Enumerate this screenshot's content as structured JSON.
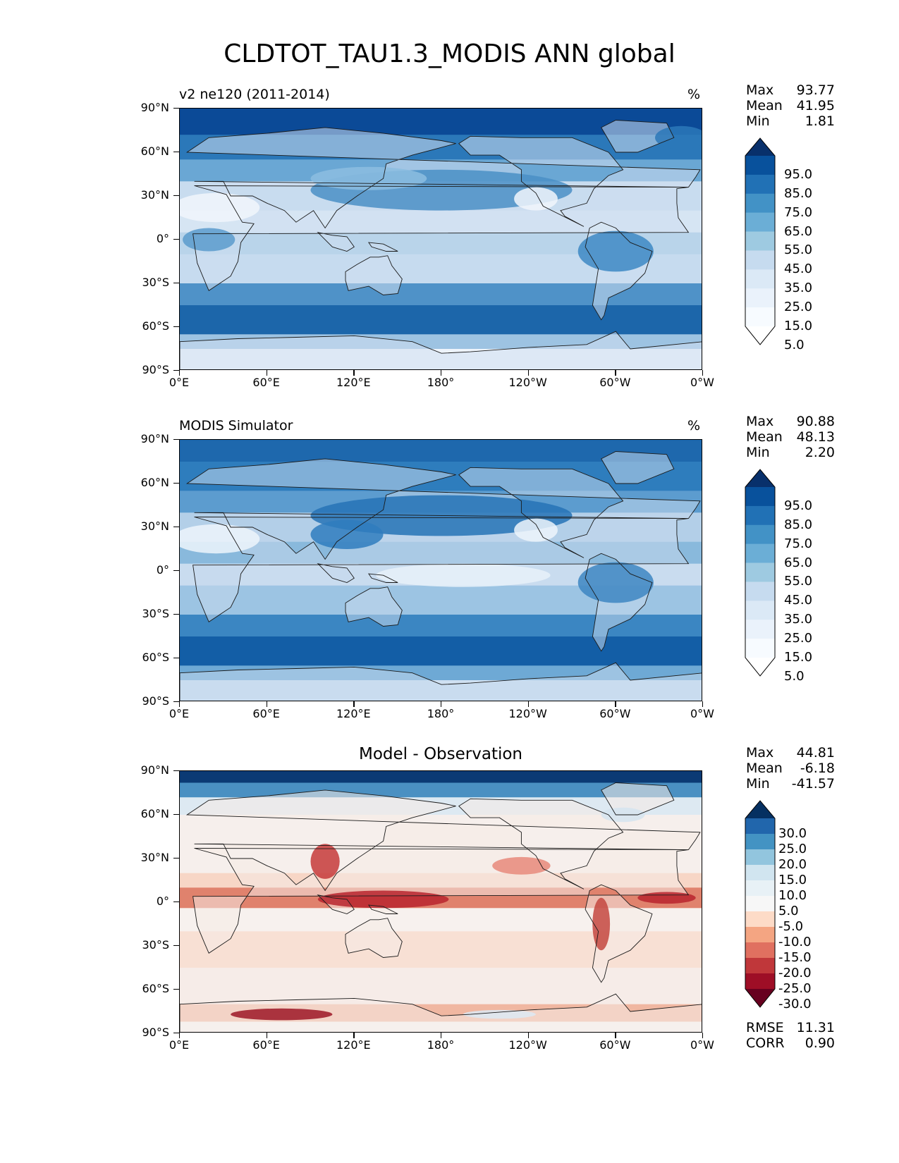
{
  "title": "CLDTOT_TAU1.3_MODIS ANN global",
  "lat_ticks": [
    "90°N",
    "60°N",
    "30°N",
    "0°",
    "30°S",
    "60°S",
    "90°S"
  ],
  "lon_ticks": [
    "0°E",
    "60°E",
    "120°E",
    "180°",
    "120°W",
    "60°W",
    "0°W"
  ],
  "panels": [
    {
      "name": "model",
      "title_left": "v2 ne120 (2011-2014)",
      "title_right": "%",
      "stats": [
        {
          "label": "Max",
          "value": "93.77"
        },
        {
          "label": "Mean",
          "value": "41.95"
        },
        {
          "label": "Min",
          "value": "1.81"
        }
      ],
      "colorbar_labels": [
        "95.0",
        "85.0",
        "75.0",
        "65.0",
        "55.0",
        "45.0",
        "35.0",
        "25.0",
        "15.0",
        "5.0"
      ],
      "colorbar_colors": [
        "#08306b",
        "#08519c",
        "#2171b5",
        "#4292c6",
        "#6baed6",
        "#9ecae1",
        "#c6dbef",
        "#dbe9f6",
        "#eaf2fb",
        "#f7fbff",
        "#ffffff"
      ]
    },
    {
      "name": "obs",
      "title_left": "MODIS Simulator",
      "title_right": "%",
      "stats": [
        {
          "label": "Max",
          "value": "90.88"
        },
        {
          "label": "Mean",
          "value": "48.13"
        },
        {
          "label": "Min",
          "value": "2.20"
        }
      ],
      "colorbar_labels": [
        "95.0",
        "85.0",
        "75.0",
        "65.0",
        "55.0",
        "45.0",
        "35.0",
        "25.0",
        "15.0",
        "5.0"
      ],
      "colorbar_colors": [
        "#08306b",
        "#08519c",
        "#2171b5",
        "#4292c6",
        "#6baed6",
        "#9ecae1",
        "#c6dbef",
        "#dbe9f6",
        "#eaf2fb",
        "#f7fbff",
        "#ffffff"
      ]
    },
    {
      "name": "diff",
      "title_center": "Model - Observation",
      "stats": [
        {
          "label": "Max",
          "value": "44.81"
        },
        {
          "label": "Mean",
          "value": "-6.18"
        },
        {
          "label": "Min",
          "value": "-41.57"
        }
      ],
      "colorbar_labels": [
        "30.0",
        "25.0",
        "20.0",
        "15.0",
        "10.0",
        "5.0",
        "-5.0",
        "-10.0",
        "-15.0",
        "-20.0",
        "-25.0",
        "-30.0"
      ],
      "colorbar_colors": [
        "#053061",
        "#2166ac",
        "#4393c3",
        "#92c5de",
        "#d1e5f0",
        "#e8f1f6",
        "#f7f7f7",
        "#fddbc7",
        "#f4a582",
        "#e07060",
        "#c0373a",
        "#9e0e26",
        "#67001f"
      ],
      "footer": [
        {
          "label": "RMSE",
          "value": "11.31"
        },
        {
          "label": "CORR",
          "value": "0.90"
        }
      ]
    }
  ]
}
